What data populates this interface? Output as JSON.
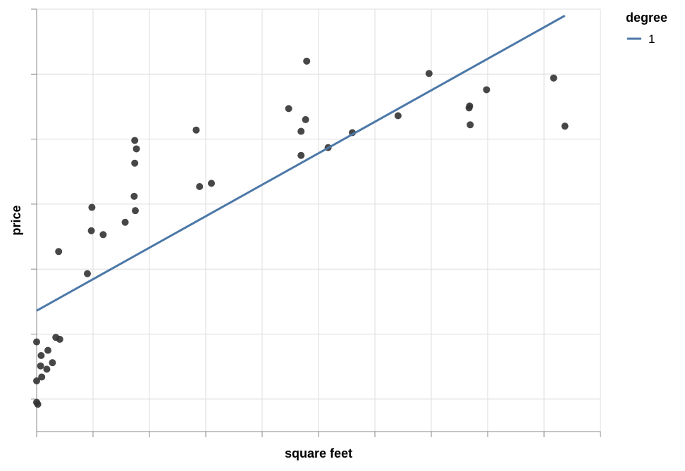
{
  "chart_data": {
    "type": "scatter",
    "title": "",
    "xlabel": "square feet",
    "ylabel": "price",
    "xlim": [
      0,
      10
    ],
    "ylim": [
      -0.5,
      6
    ],
    "x_ticks": [
      0,
      1,
      2,
      3,
      4,
      5,
      6,
      7,
      8,
      9,
      10
    ],
    "y_ticks": [
      0,
      1,
      2,
      3,
      4,
      5,
      6
    ],
    "tick_labels_shown": false,
    "grid": true,
    "legend": {
      "title": "degree",
      "position": "top-right",
      "entries": [
        {
          "label": "1",
          "color": "#4c78a8"
        }
      ]
    },
    "points": [
      {
        "x": 0.0,
        "y": 0.88
      },
      {
        "x": 0.0,
        "y": 0.28
      },
      {
        "x": 0.0,
        "y": -0.05
      },
      {
        "x": 0.02,
        "y": -0.08
      },
      {
        "x": 0.07,
        "y": 0.51
      },
      {
        "x": 0.08,
        "y": 0.67
      },
      {
        "x": 0.09,
        "y": 0.34
      },
      {
        "x": 0.18,
        "y": 0.46
      },
      {
        "x": 0.2,
        "y": 0.75
      },
      {
        "x": 0.28,
        "y": 0.56
      },
      {
        "x": 0.34,
        "y": 0.95
      },
      {
        "x": 0.39,
        "y": 2.27
      },
      {
        "x": 0.41,
        "y": 0.92
      },
      {
        "x": 0.9,
        "y": 1.93
      },
      {
        "x": 0.97,
        "y": 2.59
      },
      {
        "x": 0.98,
        "y": 2.95
      },
      {
        "x": 1.18,
        "y": 2.53
      },
      {
        "x": 1.57,
        "y": 2.72
      },
      {
        "x": 1.73,
        "y": 3.12
      },
      {
        "x": 1.74,
        "y": 3.63
      },
      {
        "x": 1.74,
        "y": 3.98
      },
      {
        "x": 1.75,
        "y": 2.9
      },
      {
        "x": 1.77,
        "y": 3.85
      },
      {
        "x": 2.83,
        "y": 4.14
      },
      {
        "x": 2.89,
        "y": 3.27
      },
      {
        "x": 3.1,
        "y": 3.32
      },
      {
        "x": 4.47,
        "y": 4.47
      },
      {
        "x": 4.69,
        "y": 4.12
      },
      {
        "x": 4.69,
        "y": 3.75
      },
      {
        "x": 4.77,
        "y": 4.3
      },
      {
        "x": 4.79,
        "y": 5.2
      },
      {
        "x": 5.17,
        "y": 3.87
      },
      {
        "x": 5.6,
        "y": 4.1
      },
      {
        "x": 6.41,
        "y": 4.36
      },
      {
        "x": 6.96,
        "y": 5.01
      },
      {
        "x": 7.67,
        "y": 4.48
      },
      {
        "x": 7.68,
        "y": 4.51
      },
      {
        "x": 7.69,
        "y": 4.22
      },
      {
        "x": 7.98,
        "y": 4.76
      },
      {
        "x": 9.17,
        "y": 4.94
      },
      {
        "x": 9.37,
        "y": 4.2
      }
    ],
    "series": [
      {
        "name": "1",
        "type": "line",
        "color": "#4c78a8",
        "x": [
          0,
          9.37
        ],
        "y": [
          1.36,
          5.9
        ]
      }
    ],
    "point_color": "#333333",
    "grid_color": "#dddddd",
    "axis_color": "#888888"
  }
}
